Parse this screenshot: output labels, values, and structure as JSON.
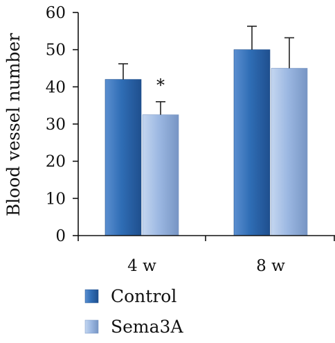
{
  "chart_data": {
    "type": "bar",
    "categories": [
      "4 w",
      "8 w"
    ],
    "series": [
      {
        "name": "Control",
        "values": [
          42,
          50
        ],
        "errors": [
          4.2,
          6.3
        ],
        "color": "#2f6db5"
      },
      {
        "name": "Sema3A",
        "values": [
          32.5,
          45
        ],
        "errors": [
          3.5,
          8.2
        ],
        "color": "#9cb8e2"
      }
    ],
    "ylabel": "Blood vessel number",
    "xlabel": "",
    "ylim": [
      0,
      60
    ],
    "yticks": [
      "0",
      "10",
      "20",
      "30",
      "40",
      "50",
      "60"
    ],
    "annotations": [
      {
        "text": "*",
        "series": "Sema3A",
        "category": "4 w"
      }
    ],
    "grid": false,
    "legend_position": "bottom-left"
  }
}
